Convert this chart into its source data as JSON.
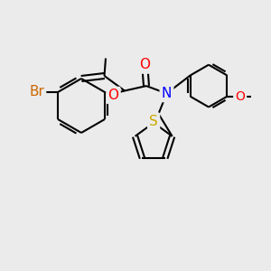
{
  "background_color": "#ebebeb",
  "bond_color": "#000000",
  "bond_width": 1.5,
  "atom_colors": {
    "Br": "#cc6600",
    "O": "#ff0000",
    "N": "#0000ff",
    "S": "#ccaa00"
  }
}
